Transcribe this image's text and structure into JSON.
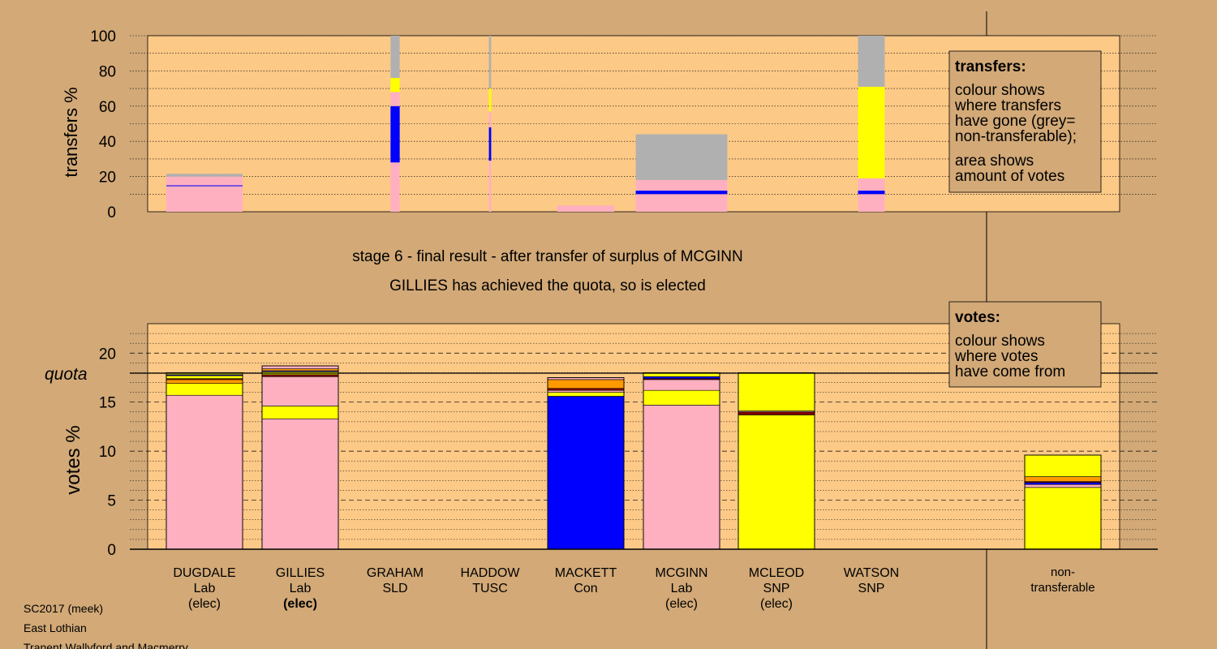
{
  "top": {
    "ylabel": "transfers %",
    "ticks": [
      "0",
      "20",
      "40",
      "60",
      "80",
      "100"
    ]
  },
  "bottom": {
    "ylabel": "votes %",
    "ticks": [
      "0",
      "5",
      "10",
      "15",
      "20"
    ],
    "quota_label": "quota"
  },
  "stage_title": "stage 6 - final result - after transfer of surplus of MCGINN",
  "stage_subtitle": "GILLIES has achieved the quota, so is elected",
  "legend_transfers": {
    "title": "transfers:",
    "line1": "colour shows",
    "line2": "where transfers",
    "line3": "have gone (grey=",
    "line4": "non-transferable);",
    "line5": "area shows",
    "line6": "amount of votes"
  },
  "legend_votes": {
    "title": "votes:",
    "line1": "colour shows",
    "line2": "where votes",
    "line3": "have come from"
  },
  "candidates": [
    {
      "name": "DUGDALE",
      "party": "Lab",
      "status": "(elec)"
    },
    {
      "name": "GILLIES",
      "party": "Lab",
      "status": "(elec)"
    },
    {
      "name": "GRAHAM",
      "party": "SLD",
      "status": ""
    },
    {
      "name": "HADDOW",
      "party": "TUSC",
      "status": ""
    },
    {
      "name": "MACKETT",
      "party": "Con",
      "status": ""
    },
    {
      "name": "MCGINN",
      "party": "Lab",
      "status": "(elec)"
    },
    {
      "name": "MCLEOD",
      "party": "SNP",
      "status": "(elec)"
    },
    {
      "name": "WATSON",
      "party": "SNP",
      "status": ""
    }
  ],
  "nontransferable": {
    "line1": "non-",
    "line2": "transferable"
  },
  "footer": {
    "line1": "SC2017 (meek)",
    "line2": "East Lothian",
    "line3": "Tranent Wallyford and Macmerry"
  },
  "colors": {
    "Lab": "#ffb0c0",
    "Con": "#0000ff",
    "SNP": "#ffff00",
    "SLD": "#ff9900",
    "TUSC": "#800000",
    "nontransferable": "#b0b0b0",
    "panel": "#fdc987",
    "background": "#d2a977"
  },
  "chart_data": [
    {
      "type": "bar",
      "ylabel": "transfers %",
      "ylim": [
        0,
        100
      ],
      "categories": [
        "DUGDALE",
        "GILLIES",
        "GRAHAM",
        "HADDOW",
        "MACKETT",
        "MCGINN",
        "MCLEOD",
        "WATSON",
        "non-transferable"
      ],
      "columns": [
        {
          "candidate": "DUGDALE",
          "width_share": 1.0,
          "stack": [
            {
              "to": "Lab",
              "value": 14.5
            },
            {
              "to": "Con",
              "value": 0.5
            },
            {
              "to": "Lab",
              "value": 5.0
            },
            {
              "to": "nontransferable",
              "value": 1.5
            }
          ]
        },
        {
          "candidate": "GRAHAM",
          "width_share": 0.12,
          "stack": [
            {
              "to": "Lab",
              "value": 28
            },
            {
              "to": "Con",
              "value": 32
            },
            {
              "to": "Lab",
              "value": 8
            },
            {
              "to": "SNP",
              "value": 8
            },
            {
              "to": "nontransferable",
              "value": 24
            }
          ]
        },
        {
          "candidate": "HADDOW",
          "width_share": 0.03,
          "stack": [
            {
              "to": "Lab",
              "value": 29
            },
            {
              "to": "Con",
              "value": 19
            },
            {
              "to": "Lab",
              "value": 9
            },
            {
              "to": "SNP",
              "value": 13
            },
            {
              "to": "nontransferable",
              "value": 30
            }
          ]
        },
        {
          "candidate": "MACKETT",
          "width_share": 0.75,
          "stack": [
            {
              "to": "Lab",
              "value": 3.5
            }
          ]
        },
        {
          "candidate": "MCGINN",
          "width_share": 1.2,
          "stack": [
            {
              "to": "Lab",
              "value": 10
            },
            {
              "to": "Con",
              "value": 2
            },
            {
              "to": "Lab",
              "value": 6
            },
            {
              "to": "nontransferable",
              "value": 26
            }
          ]
        },
        {
          "candidate": "WATSON",
          "width_share": 0.35,
          "stack": [
            {
              "to": "Lab",
              "value": 10
            },
            {
              "to": "Con",
              "value": 2
            },
            {
              "to": "Lab",
              "value": 7
            },
            {
              "to": "SNP",
              "value": 52
            },
            {
              "to": "nontransferable",
              "value": 29
            }
          ]
        }
      ]
    },
    {
      "type": "bar",
      "ylabel": "votes %",
      "ylim": [
        0,
        23
      ],
      "quota": 18,
      "categories": [
        "DUGDALE",
        "GILLIES",
        "GRAHAM",
        "HADDOW",
        "MACKETT",
        "MCGINN",
        "MCLEOD",
        "WATSON",
        "non-transferable"
      ],
      "stacks": [
        [
          {
            "from": "Lab",
            "value": 15.7
          },
          {
            "from": "SNP",
            "value": 1.2
          },
          {
            "from": "SLD",
            "value": 0.4
          },
          {
            "from": "TUSC",
            "value": 0.1
          },
          {
            "from": "SNP",
            "value": 0.3
          },
          {
            "from": "Con",
            "value": 0.1
          },
          {
            "from": "SNP",
            "value": 0.2
          }
        ],
        [
          {
            "from": "Lab",
            "value": 13.3
          },
          {
            "from": "SNP",
            "value": 1.3
          },
          {
            "from": "Lab",
            "value": 3.0
          },
          {
            "from": "TUSC",
            "value": 0.2
          },
          {
            "from": "SNP",
            "value": 0.3
          },
          {
            "from": "Con",
            "value": 0.1
          },
          {
            "from": "SLD",
            "value": 0.2
          },
          {
            "from": "Lab",
            "value": 0.3
          }
        ],
        [],
        [],
        [
          {
            "from": "Con",
            "value": 15.6
          },
          {
            "from": "SNP",
            "value": 0.4
          },
          {
            "from": "Lab",
            "value": 0.2
          },
          {
            "from": "TUSC",
            "value": 0.2
          },
          {
            "from": "SLD",
            "value": 0.9
          },
          {
            "from": "Lab",
            "value": 0.2
          }
        ],
        [
          {
            "from": "Lab",
            "value": 14.7
          },
          {
            "from": "SNP",
            "value": 1.5
          },
          {
            "from": "Lab",
            "value": 1.1
          },
          {
            "from": "TUSC",
            "value": 0.1
          },
          {
            "from": "Con",
            "value": 0.2
          },
          {
            "from": "SNP",
            "value": 0.4
          }
        ],
        [
          {
            "from": "SNP",
            "value": 13.7
          },
          {
            "from": "TUSC",
            "value": 0.3
          },
          {
            "from": "Lab",
            "value": 0.1
          },
          {
            "from": "SNP",
            "value": 3.9
          }
        ],
        [],
        [
          {
            "from": "SNP",
            "value": 6.3
          },
          {
            "from": "Lab",
            "value": 0.3
          },
          {
            "from": "Con",
            "value": 0.2
          },
          {
            "from": "TUSC",
            "value": 0.1
          },
          {
            "from": "SLD",
            "value": 0.5
          },
          {
            "from": "SNP",
            "value": 2.2
          }
        ]
      ]
    }
  ]
}
